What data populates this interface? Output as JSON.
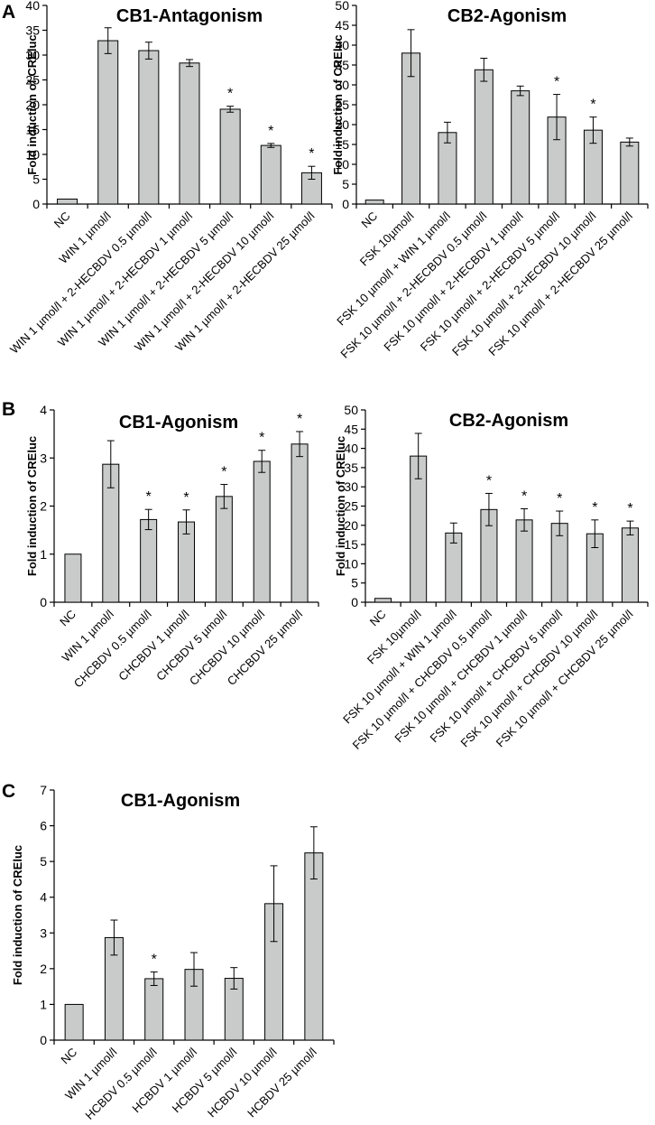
{
  "panel_letters": [
    "A",
    "B",
    "C"
  ],
  "chart_data": [
    {
      "panel": "A",
      "type": "bar",
      "title": "CB1-Antagonism",
      "xlabel": "",
      "ylabel": "Fold induction of CREluc",
      "ylim": [
        0,
        40
      ],
      "yticks": [
        0,
        5,
        10,
        15,
        20,
        25,
        30,
        35,
        40
      ],
      "categories": [
        "NC",
        "WIN 1 µmol/l",
        "WIN 1 µmol/l + 2-HECBDV 0.5 µmol/l",
        "WIN 1 µmol/l + 2-HECBDV 1 µmol/l",
        "WIN 1 µmol/l + 2-HECBDV 5 µmol/l",
        "WIN 1 µmol/l + 2-HECBDV 10 µmol/l",
        "WIN 1 µmol/l + 2-HECBDV 25 µmol/l"
      ],
      "values": [
        1.0,
        32.9,
        30.9,
        28.4,
        19.1,
        11.8,
        6.3
      ],
      "errors": [
        0,
        2.6,
        1.7,
        0.7,
        0.6,
        0.4,
        1.3
      ],
      "significant": [
        false,
        false,
        false,
        false,
        true,
        true,
        true
      ],
      "significance_marker": "*"
    },
    {
      "panel": "A",
      "type": "bar",
      "title": "CB2-Agonism",
      "xlabel": "",
      "ylabel": "Fold induction of CREluc",
      "ylim": [
        0,
        50
      ],
      "yticks": [
        0,
        5,
        10,
        15,
        20,
        25,
        30,
        35,
        40,
        45,
        50
      ],
      "categories": [
        "NC",
        "FSK 10µmol/l",
        "FSK 10 µmol/l + WIN 1 µmol/l",
        "FSK 10 µmol/l + 2-HECBDV 0.5 µmol/l",
        "FSK 10 µmol/l + 2-HECBDV 1 µmol/l",
        "FSK 10 µmol/l + 2-HECBDV 5 µmol/l",
        "FSK 10 µmol/l + 2-HECBDV 10 µmol/l",
        "FSK 10 µmol/l + 2-HECBDV 25 µmol/l"
      ],
      "values": [
        1.0,
        38.0,
        18.0,
        33.8,
        28.5,
        21.9,
        18.6,
        15.6
      ],
      "errors": [
        0,
        5.9,
        2.6,
        2.9,
        1.2,
        5.7,
        3.3,
        1.0
      ],
      "significant": [
        false,
        false,
        false,
        false,
        false,
        true,
        true,
        false
      ],
      "significance_marker": "*"
    },
    {
      "panel": "B",
      "type": "bar",
      "title": "CB1-Agonism",
      "xlabel": "",
      "ylabel": "Fold induction of CREluc",
      "ylim": [
        0,
        4
      ],
      "yticks": [
        0,
        1,
        2,
        3,
        4
      ],
      "categories": [
        "NC",
        "WIN 1 µmol/l",
        "CHCBDV 0.5 µmol/l",
        "CHCBDV 1 µmol/l",
        "CHCBDV 5 µmol/l",
        "CHCBDV 10 µmol/l",
        "CHCBDV 25 µmol/l"
      ],
      "values": [
        1.0,
        2.87,
        1.72,
        1.67,
        2.2,
        2.93,
        3.29
      ],
      "errors": [
        0,
        0.49,
        0.21,
        0.25,
        0.25,
        0.23,
        0.26
      ],
      "significant": [
        false,
        false,
        true,
        true,
        true,
        true,
        true
      ],
      "significance_marker": "*"
    },
    {
      "panel": "B",
      "type": "bar",
      "title": "CB2-Agonism",
      "xlabel": "",
      "ylabel": "Fold induction of CREluc",
      "ylim": [
        0,
        50
      ],
      "yticks": [
        0,
        5,
        10,
        15,
        20,
        25,
        30,
        35,
        40,
        45,
        50
      ],
      "categories": [
        "NC",
        "FSK 10µmol/l",
        "FSK 10 µmol/l + WIN 1 µmol/l",
        "FSK 10 µmol/l + CHCBDV 0.5 µmol/l",
        "FSK 10 µmol/l + CHCBDV 1 µmol/l",
        "FSK 10 µmol/l + CHCBDV 5 µmol/l",
        "FSK 10 µmol/l + CHCBDV 10 µmol/l",
        "FSK 10 µmol/l + CHCBDV 25 µmol/l"
      ],
      "values": [
        1.0,
        38.0,
        18.0,
        24.1,
        21.4,
        20.5,
        17.8,
        19.3
      ],
      "errors": [
        0,
        5.9,
        2.6,
        4.2,
        2.9,
        3.2,
        3.6,
        1.8
      ],
      "significant": [
        false,
        false,
        false,
        true,
        true,
        true,
        true,
        true
      ],
      "significance_marker": "*"
    },
    {
      "panel": "C",
      "type": "bar",
      "title": "CB1-Agonism",
      "xlabel": "",
      "ylabel": "Fold induction of CREluc",
      "ylim": [
        0,
        7
      ],
      "yticks": [
        0,
        1,
        2,
        3,
        4,
        5,
        6,
        7
      ],
      "categories": [
        "NC",
        "WIN 1 µmol/l",
        "HCBDV 0.5 µmol/l",
        "HCBDV 1 µmol/l",
        "HCBDV 5 µmol/l",
        "HCBDV 10 µmol/l",
        "HCBDV 25 µmol/l"
      ],
      "values": [
        1.0,
        2.87,
        1.72,
        1.98,
        1.73,
        3.82,
        5.24
      ],
      "errors": [
        0,
        0.49,
        0.19,
        0.47,
        0.3,
        1.06,
        0.73
      ],
      "significant": [
        false,
        false,
        true,
        false,
        false,
        false,
        false
      ],
      "significance_marker": "*"
    }
  ]
}
